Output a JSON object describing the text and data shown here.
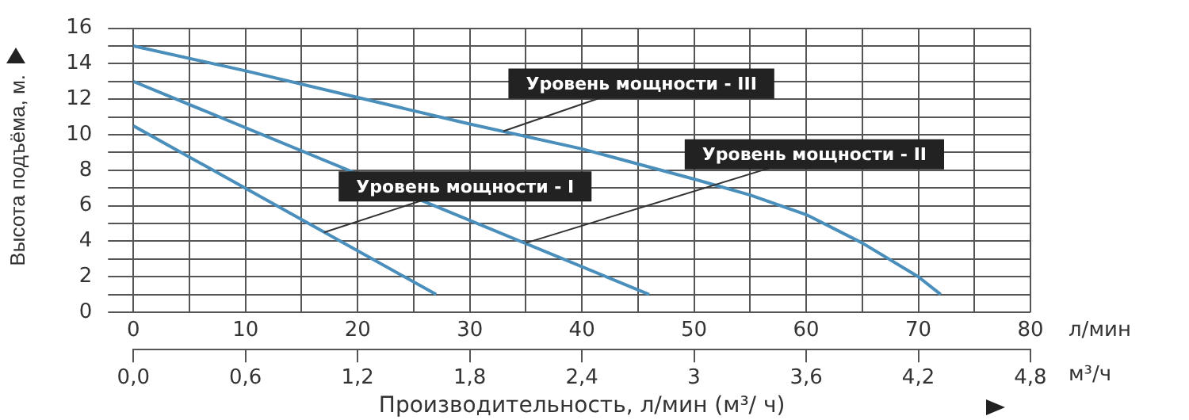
{
  "chart_data": {
    "type": "line",
    "xlabel": "Производительность, л/мин (м³/ ч)",
    "ylabel": "Высота подъёма, м.",
    "xlim": [
      0,
      80
    ],
    "xticks": [
      0,
      {
        "value": 5,
        "label": null
      },
      10,
      {
        "value": 15,
        "label": null
      },
      20,
      {
        "value": 25,
        "label": null
      },
      30,
      {
        "value": 35,
        "label": null
      },
      40,
      {
        "value": 45,
        "label": null
      },
      50,
      {
        "value": 55,
        "label": null
      },
      60,
      {
        "value": 65,
        "label": null
      },
      70,
      {
        "value": 75,
        "label": null
      },
      80
    ],
    "ylim": [
      0,
      16
    ],
    "yticks": [
      0,
      {
        "value": 1,
        "label": null
      },
      2,
      {
        "value": 3,
        "label": null
      },
      4,
      {
        "value": 5,
        "label": null
      },
      6,
      {
        "value": 7,
        "label": null
      },
      8,
      {
        "value": 9,
        "label": null
      },
      10,
      {
        "value": 11,
        "label": null
      },
      12,
      {
        "value": 13,
        "label": null
      },
      14,
      {
        "value": 15,
        "label": null
      },
      16
    ],
    "x2lim": [
      0,
      4.8
    ],
    "x2ticks": [
      {
        "value": 0,
        "label": "0,0"
      },
      {
        "value": 0.6,
        "label": "0,6"
      },
      {
        "value": 1.2,
        "label": "1,2"
      },
      {
        "value": 1.8,
        "label": "1,8"
      },
      {
        "value": 2.4,
        "label": "2,4"
      },
      3,
      {
        "value": 3.6,
        "label": "3,6"
      },
      {
        "value": 4.2,
        "label": "4,2"
      },
      {
        "value": 4.8,
        "label": "4,8"
      }
    ],
    "grid": true,
    "legend": false,
    "marker": "none",
    "line_style": "solid",
    "series": [
      {
        "color": "#4a8fbb",
        "x": [
          0,
          27
        ],
        "values": [
          10.5,
          1
        ]
      },
      {
        "color": "#4a8fbb",
        "x": [
          0,
          46
        ],
        "values": [
          13,
          1
        ]
      },
      {
        "color": "#4a8fbb",
        "x": [
          0,
          10,
          20,
          30,
          40,
          50,
          55,
          60,
          65,
          70,
          72
        ],
        "values": [
          15,
          13.6,
          12.1,
          10.6,
          9.2,
          7.5,
          6.6,
          5.5,
          3.9,
          2,
          1
        ]
      }
    ],
    "annotations": [
      {
        "text": "Уровень мощности - I",
        "x": 17,
        "y": 4.5
      },
      {
        "text": "Уровень мощности - II",
        "x": 35,
        "y": 3.9
      },
      {
        "text": "Уровень мощности - III",
        "x": 33,
        "y": 10.2
      },
      "л/мин",
      "м³/ч"
    ]
  }
}
